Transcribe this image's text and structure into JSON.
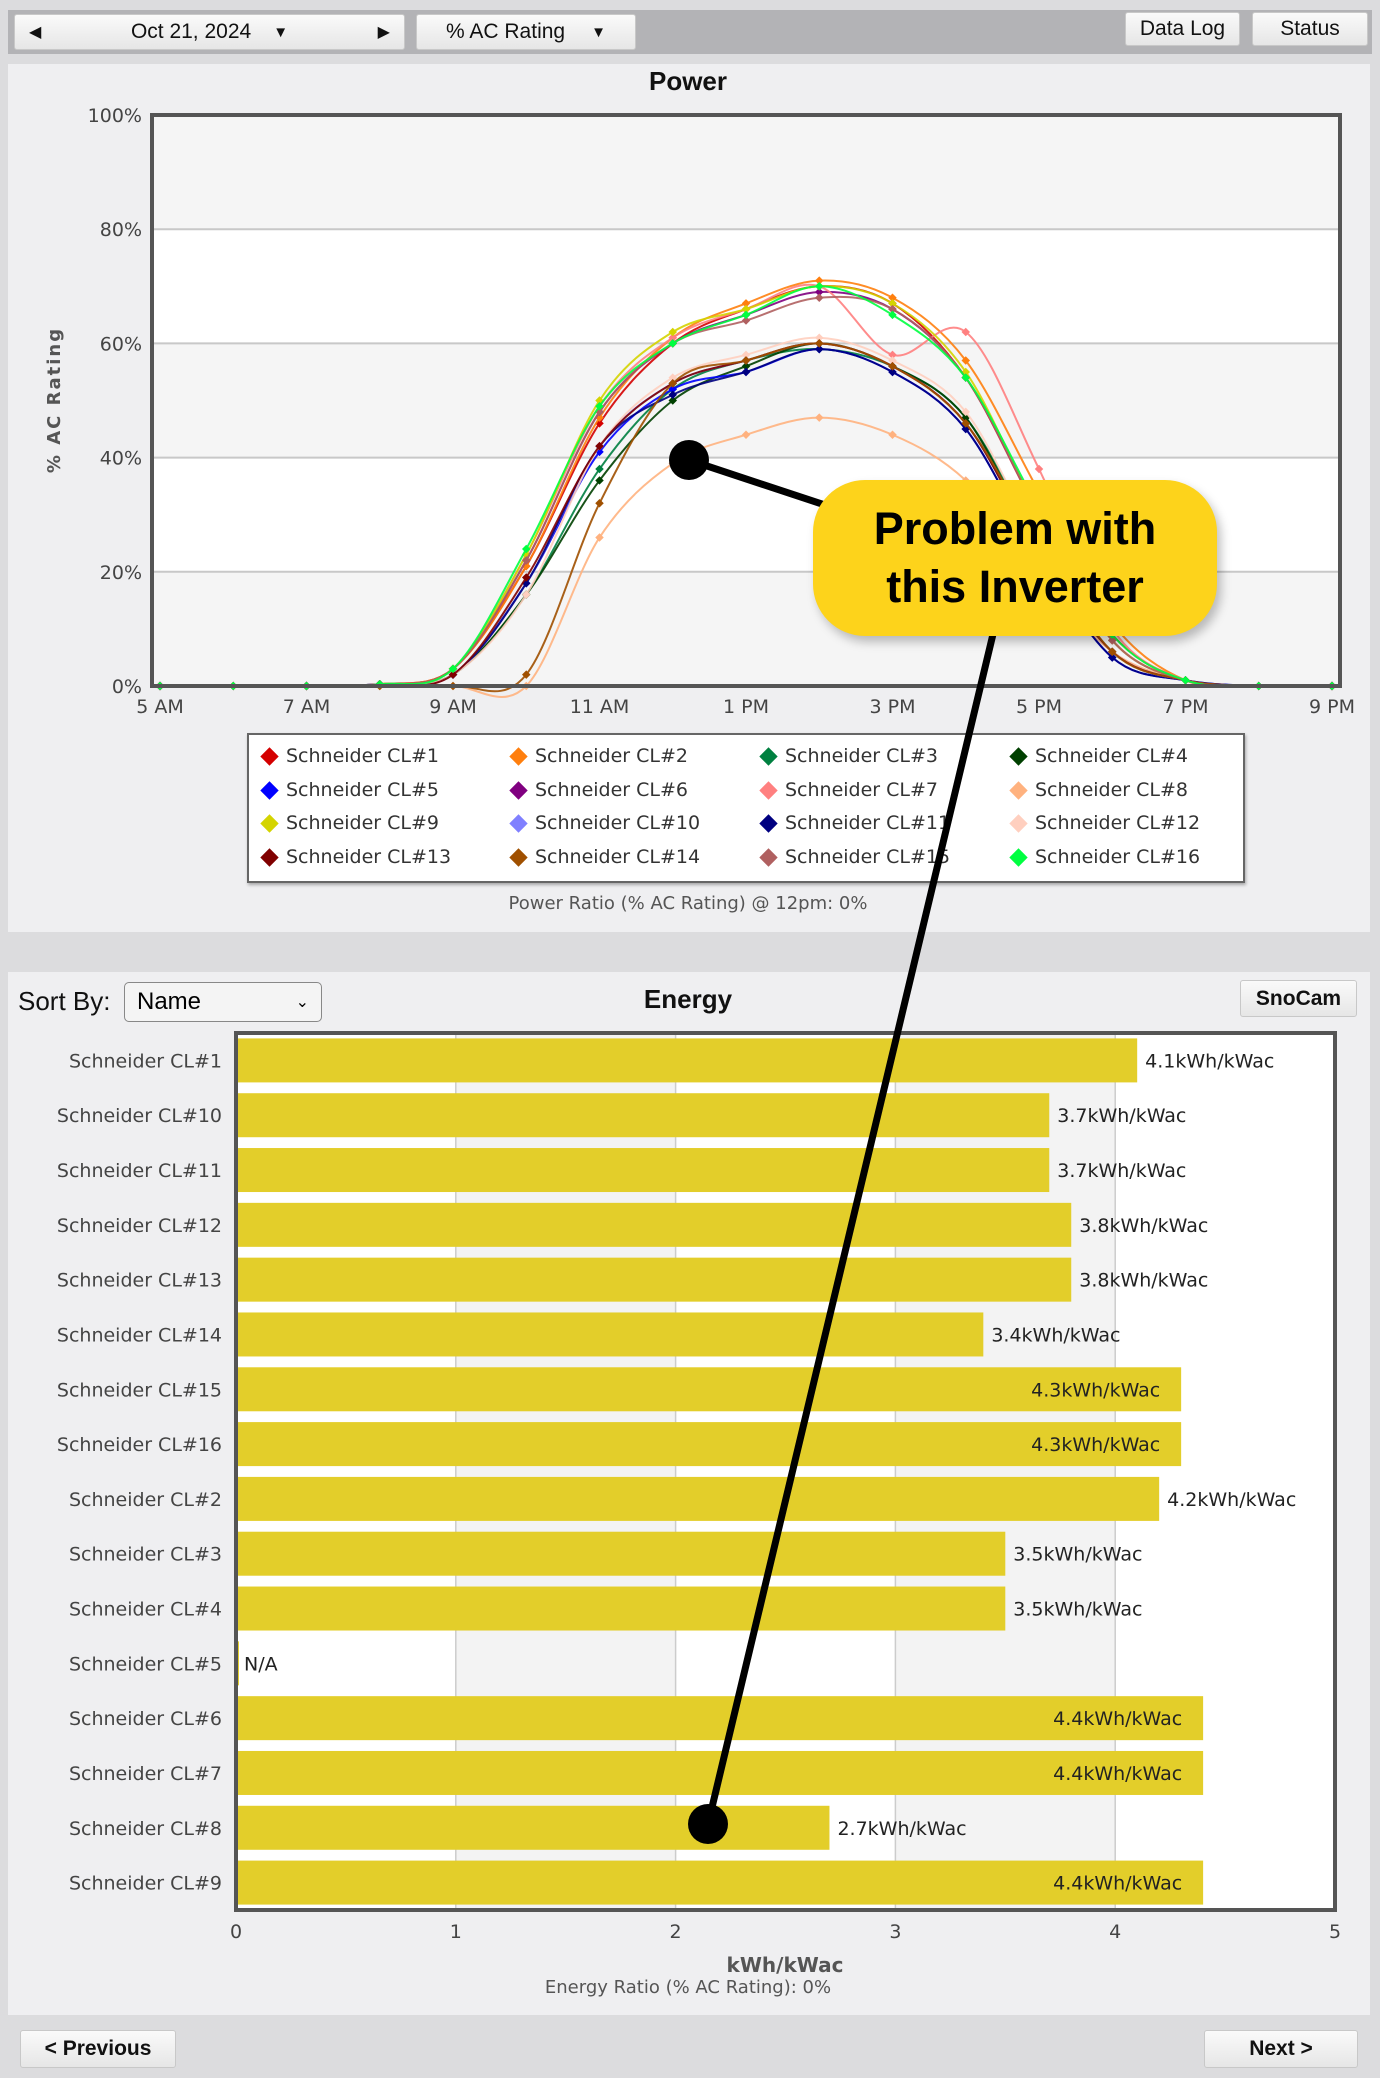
{
  "toolbar": {
    "date": "Oct 21, 2024",
    "metric": "% AC Rating",
    "data_log": "Data Log",
    "status": "Status",
    "prev_icon": "caret-left-icon",
    "next_icon": "caret-right-icon",
    "dropdown_icon": "caret-down-icon"
  },
  "power": {
    "title": "Power",
    "caption": "Power Ratio (% AC Rating) @ 12pm: 0%"
  },
  "energy": {
    "title": "Energy",
    "sort_label": "Sort By:",
    "sort_value": "Name",
    "snocam": "SnoCam",
    "caption": "Energy Ratio (% AC Rating): 0%"
  },
  "nav": {
    "previous": "< Previous",
    "next": "Next >"
  },
  "annotation": {
    "line1": "Problem with",
    "line2": "this Inverter",
    "color": "#fdd31b"
  },
  "chart_data": [
    {
      "type": "line",
      "title": "Power",
      "ylabel": "% AC Rating",
      "ylim": [
        0,
        100
      ],
      "yticks": [
        "0%",
        "20%",
        "40%",
        "60%",
        "80%",
        "100%"
      ],
      "x": [
        "5 AM",
        "6 AM",
        "7 AM",
        "8 AM",
        "9 AM",
        "10 AM",
        "11 AM",
        "12 PM",
        "1 PM",
        "2 PM",
        "3 PM",
        "4 PM",
        "5 PM",
        "6 PM",
        "7 PM",
        "8 PM",
        "9 PM"
      ],
      "xticks": [
        "5 AM",
        "7 AM",
        "9 AM",
        "11 AM",
        "1 PM",
        "3 PM",
        "5 PM",
        "7 PM",
        "9 PM"
      ],
      "grid": true,
      "legend": "bottom",
      "series": [
        {
          "name": "Schneider CL#1",
          "color": "#d40000",
          "values": [
            0,
            0,
            0,
            0.3,
            3,
            21,
            46,
            60,
            66,
            70,
            67,
            54,
            30,
            9,
            1,
            0,
            0
          ]
        },
        {
          "name": "Schneider CL#2",
          "color": "#ff7f0e",
          "values": [
            0,
            0,
            0,
            0.3,
            3,
            21,
            47,
            61,
            67,
            71,
            68,
            57,
            34,
            11,
            1,
            0,
            0
          ]
        },
        {
          "name": "Schneider CL#3",
          "color": "#008040",
          "values": [
            0,
            0,
            0,
            0.3,
            2,
            16,
            38,
            52,
            57,
            59,
            56,
            47,
            25,
            6,
            1,
            0,
            0
          ]
        },
        {
          "name": "Schneider CL#4",
          "color": "#004000",
          "values": [
            0,
            0,
            0,
            0.3,
            2,
            16,
            36,
            50,
            56,
            60,
            56,
            47,
            24,
            6,
            1,
            0,
            0
          ]
        },
        {
          "name": "Schneider CL#5",
          "color": "#0000ff",
          "values": [
            0,
            0,
            0,
            0.3,
            2,
            18,
            41,
            52,
            55,
            59,
            55,
            45,
            23,
            5,
            1,
            0,
            0
          ]
        },
        {
          "name": "Schneider CL#6",
          "color": "#800080",
          "values": [
            0,
            0,
            0,
            0.3,
            3,
            22,
            48,
            60,
            65,
            69,
            66,
            54,
            30,
            8,
            1,
            0,
            0
          ]
        },
        {
          "name": "Schneider CL#7",
          "color": "#ff8080",
          "values": [
            0,
            0,
            0,
            0.3,
            3,
            23,
            49,
            61,
            66,
            70,
            58,
            62,
            38,
            10,
            1,
            0,
            0
          ]
        },
        {
          "name": "Schneider CL#8",
          "color": "#ffb27f",
          "values": [
            0,
            0,
            0,
            0,
            0,
            0,
            26,
            39,
            44,
            47,
            44,
            36,
            20,
            6,
            1,
            0,
            0
          ]
        },
        {
          "name": "Schneider CL#9",
          "color": "#d4d400",
          "values": [
            0,
            0,
            0,
            0.3,
            3,
            23,
            50,
            62,
            66,
            70,
            67,
            55,
            30,
            8,
            1,
            0,
            0
          ]
        },
        {
          "name": "Schneider CL#10",
          "color": "#8080ff",
          "values": [
            0,
            0,
            0,
            0.3,
            2,
            18,
            42,
            53,
            57,
            60,
            56,
            46,
            24,
            6,
            1,
            0,
            0
          ]
        },
        {
          "name": "Schneider CL#11",
          "color": "#000080",
          "values": [
            0,
            0,
            0,
            0.3,
            2,
            18,
            42,
            51,
            55,
            59,
            55,
            45,
            23,
            5,
            1,
            0,
            0
          ]
        },
        {
          "name": "Schneider CL#12",
          "color": "#ffcfbf",
          "values": [
            0,
            0,
            0,
            0.3,
            2,
            16,
            42,
            54,
            58,
            61,
            57,
            48,
            25,
            6,
            1,
            0,
            0
          ]
        },
        {
          "name": "Schneider CL#13",
          "color": "#800000",
          "values": [
            0,
            0,
            0,
            0.3,
            2,
            19,
            42,
            53,
            57,
            60,
            56,
            46,
            24,
            6,
            1,
            0,
            0
          ]
        },
        {
          "name": "Schneider CL#14",
          "color": "#a05000",
          "values": [
            0,
            0,
            0,
            0,
            0,
            2,
            32,
            53,
            57,
            60,
            56,
            46,
            25,
            6,
            1,
            0,
            0
          ]
        },
        {
          "name": "Schneider CL#15",
          "color": "#b06060",
          "values": [
            0,
            0,
            0,
            0.3,
            3,
            22,
            48,
            60,
            64,
            68,
            66,
            54,
            30,
            8,
            1,
            0,
            0
          ]
        },
        {
          "name": "Schneider CL#16",
          "color": "#00ff40",
          "values": [
            0,
            0,
            0,
            0.3,
            3,
            24,
            49,
            60,
            65,
            70,
            65,
            54,
            31,
            9,
            1,
            0,
            0
          ]
        }
      ]
    },
    {
      "type": "bar",
      "orientation": "horizontal",
      "title": "Energy",
      "xlabel": "kWh/kWac",
      "xlim": [
        0,
        5
      ],
      "xticks": [
        "0",
        "1",
        "2",
        "3",
        "4",
        "5"
      ],
      "bar_color": "#e3ce2a",
      "categories": [
        "Schneider CL#1",
        "Schneider CL#10",
        "Schneider CL#11",
        "Schneider CL#12",
        "Schneider CL#13",
        "Schneider CL#14",
        "Schneider CL#15",
        "Schneider CL#16",
        "Schneider CL#2",
        "Schneider CL#3",
        "Schneider CL#4",
        "Schneider CL#5",
        "Schneider CL#6",
        "Schneider CL#7",
        "Schneider CL#8",
        "Schneider CL#9"
      ],
      "values": [
        4.1,
        3.7,
        3.7,
        3.8,
        3.8,
        3.4,
        4.3,
        4.3,
        4.2,
        3.5,
        3.5,
        null,
        4.4,
        4.4,
        2.7,
        4.4
      ],
      "labels": [
        "4.1kWh/kWac",
        "3.7kWh/kWac",
        "3.7kWh/kWac",
        "3.8kWh/kWac",
        "3.8kWh/kWac",
        "3.4kWh/kWac",
        "4.3kWh/kWac",
        "4.3kWh/kWac",
        "4.2kWh/kWac",
        "3.5kWh/kWac",
        "3.5kWh/kWac",
        "N/A",
        "4.4kWh/kWac",
        "4.4kWh/kWac",
        "2.7kWh/kWac",
        "4.4kWh/kWac"
      ]
    }
  ]
}
